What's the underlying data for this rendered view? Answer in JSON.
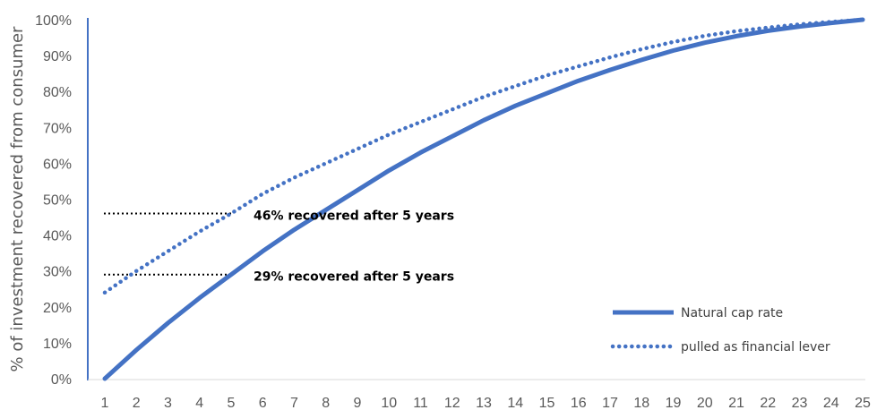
{
  "chart_data": {
    "type": "line",
    "ylabel": "% of investment recovered from consumer",
    "xlabel": "",
    "title": "",
    "x": [
      1,
      2,
      3,
      4,
      5,
      6,
      7,
      8,
      9,
      10,
      11,
      12,
      13,
      14,
      15,
      16,
      17,
      18,
      19,
      20,
      21,
      22,
      23,
      24,
      25
    ],
    "ylim": [
      0,
      100
    ],
    "yticks": [
      "0%",
      "10%",
      "20%",
      "30%",
      "40%",
      "50%",
      "60%",
      "70%",
      "80%",
      "90%",
      "100%"
    ],
    "series": [
      {
        "name": "Natural cap rate",
        "style": "solid",
        "color": "#4472C4",
        "values": [
          0,
          8,
          15.5,
          22.5,
          29,
          35.5,
          41.5,
          47,
          52.5,
          58,
          63,
          67.5,
          72,
          76,
          79.5,
          83,
          86,
          88.8,
          91.4,
          93.6,
          95.4,
          96.9,
          98.1,
          99.1,
          100
        ]
      },
      {
        "name": "pulled as financial lever",
        "style": "dotted",
        "color": "#4472C4",
        "values": [
          24,
          30,
          35.5,
          41,
          46,
          51.5,
          56,
          60,
          64,
          68,
          71.5,
          75,
          78.5,
          81.5,
          84.5,
          87,
          89.5,
          91.8,
          93.8,
          95.5,
          96.8,
          97.8,
          98.7,
          99.4,
          100
        ]
      }
    ],
    "annotations": [
      {
        "text": "46% recovered after 5 years",
        "x": 5,
        "y": 46
      },
      {
        "text": "29% recovered after 5 years",
        "x": 5,
        "y": 29
      }
    ],
    "legend_position": "bottom-right",
    "grid": false
  }
}
